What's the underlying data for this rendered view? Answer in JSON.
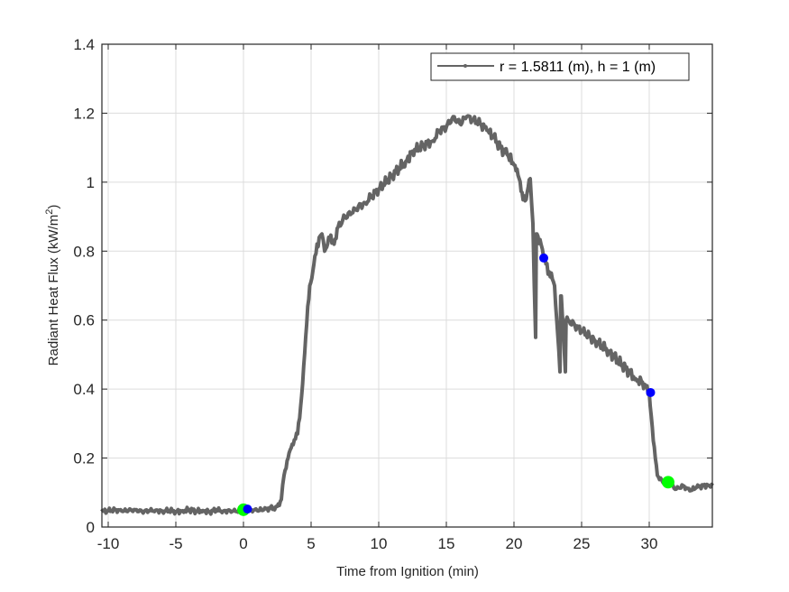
{
  "chart_data": {
    "type": "line",
    "title": "",
    "xlabel": "Time from Ignition (min)",
    "ylabel": "Radiant Heat Flux (kW/m²)",
    "ylabel_main": "Radiant Heat Flux (kW/m",
    "ylabel_sup": "2",
    "ylabel_close": ")",
    "xlim": [
      -10.5,
      34.7
    ],
    "ylim": [
      0,
      1.4
    ],
    "xticks": [
      -10,
      -5,
      0,
      5,
      10,
      15,
      20,
      25,
      30
    ],
    "xtick_labels": [
      "-10",
      "-5",
      "0",
      "5",
      "10",
      "15",
      "20",
      "25",
      "30"
    ],
    "yticks": [
      0,
      0.2,
      0.4,
      0.6,
      0.8,
      1,
      1.2,
      1.4
    ],
    "ytick_labels": [
      "0",
      "0.2",
      "0.4",
      "0.6",
      "0.8",
      "1",
      "1.2",
      "1.4"
    ],
    "grid": true,
    "legend_position": "northeast",
    "series": [
      {
        "name": "r = 1.5811 (m), h = 1 (m)",
        "color": "#646464",
        "x": [
          -10.5,
          -10,
          -9.5,
          -9,
          -8.5,
          -8,
          -7.5,
          -7,
          -6.5,
          -6,
          -5.5,
          -5,
          -4.5,
          -4,
          -3.5,
          -3,
          -2.5,
          -2,
          -1.5,
          -1,
          -0.5,
          0,
          0.5,
          1,
          1.5,
          2,
          2.3,
          2.5,
          2.8,
          3,
          3.3,
          3.6,
          4,
          4.3,
          4.6,
          4.9,
          5.2,
          5.6,
          5.8,
          6,
          6.3,
          6.7,
          7,
          7.5,
          8,
          8.5,
          9,
          9.5,
          10,
          11,
          12,
          12.5,
          13,
          14,
          14.5,
          15,
          15.5,
          16,
          16.5,
          17,
          17.5,
          18,
          18.5,
          19,
          19.5,
          20,
          20.3,
          20.6,
          20.9,
          21.2,
          21.4,
          21.6,
          21.65,
          21.7,
          22,
          22.2,
          22.6,
          23,
          23.4,
          23.45,
          23.5,
          23.8,
          23.85,
          24,
          25,
          26,
          27,
          28,
          29,
          29.5,
          30,
          30.3,
          30.6,
          31,
          31.5,
          32,
          32.5,
          33,
          33.5,
          34,
          34.7
        ],
        "values": [
          0.045,
          0.047,
          0.05,
          0.046,
          0.048,
          0.05,
          0.045,
          0.047,
          0.049,
          0.046,
          0.048,
          0.045,
          0.047,
          0.05,
          0.046,
          0.048,
          0.044,
          0.05,
          0.046,
          0.048,
          0.045,
          0.05,
          0.05,
          0.048,
          0.05,
          0.055,
          0.05,
          0.06,
          0.08,
          0.15,
          0.2,
          0.24,
          0.27,
          0.38,
          0.55,
          0.7,
          0.76,
          0.84,
          0.85,
          0.8,
          0.84,
          0.82,
          0.87,
          0.9,
          0.91,
          0.93,
          0.94,
          0.96,
          0.98,
          1.02,
          1.06,
          1.09,
          1.1,
          1.12,
          1.15,
          1.16,
          1.19,
          1.17,
          1.19,
          1.18,
          1.17,
          1.15,
          1.13,
          1.1,
          1.08,
          1.05,
          1.02,
          0.97,
          0.95,
          1.01,
          0.88,
          0.55,
          0.85,
          0.85,
          0.82,
          0.78,
          0.74,
          0.7,
          0.45,
          0.67,
          0.67,
          0.45,
          0.6,
          0.6,
          0.57,
          0.54,
          0.51,
          0.47,
          0.43,
          0.42,
          0.39,
          0.25,
          0.15,
          0.13,
          0.125,
          0.11,
          0.12,
          0.105,
          0.115,
          0.12,
          0.12
        ]
      }
    ],
    "markers": [
      {
        "x": 0.0,
        "y": 0.05,
        "color": "#00ff00",
        "size": 8
      },
      {
        "x": 0.3,
        "y": 0.052,
        "color": "#0000ff",
        "size": 6
      },
      {
        "x": 22.2,
        "y": 0.78,
        "color": "#0000ff",
        "size": 6
      },
      {
        "x": 30.1,
        "y": 0.39,
        "color": "#0000ff",
        "size": 6
      },
      {
        "x": 31.4,
        "y": 0.13,
        "color": "#00ff00",
        "size": 8
      }
    ]
  },
  "legend": {
    "entries": [
      "r = 1.5811 (m), h = 1 (m)"
    ]
  }
}
